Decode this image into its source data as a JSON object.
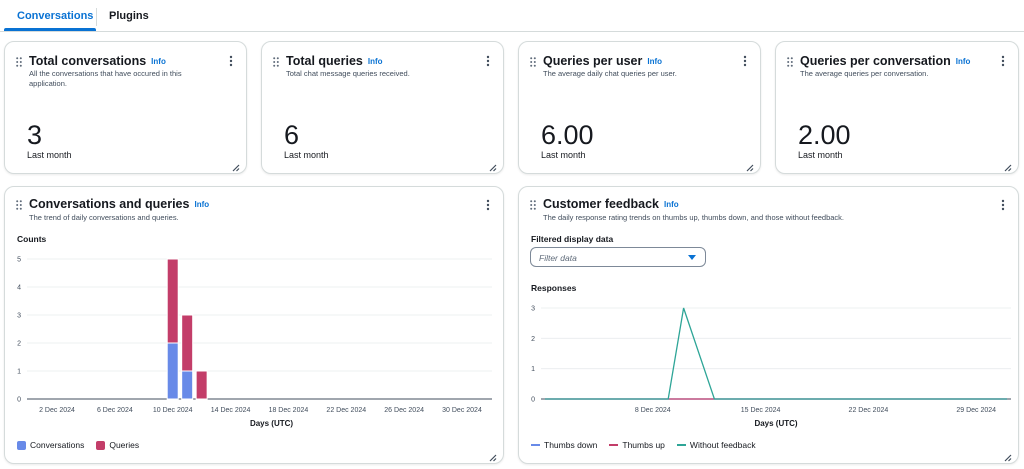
{
  "tabs": [
    {
      "label": "Conversations",
      "active": true
    },
    {
      "label": "Plugins",
      "active": false
    }
  ],
  "colors": {
    "accent": "#0972d3",
    "conversations": "#688ae8",
    "queries": "#c33d69",
    "thumbs_down": "#688ae8",
    "thumbs_up": "#c33d69",
    "without_feedback": "#2ea597"
  },
  "icons": {
    "drag_handle": "drag-handle-icon",
    "menu": "kebab-menu-icon",
    "resize": "resize-handle-icon",
    "dropdown": "caret-down-icon"
  },
  "info_label": "Info",
  "metrics": [
    {
      "title": "Total conversations",
      "description": "All the conversations that have occured in this application.",
      "value": "3",
      "period": "Last month"
    },
    {
      "title": "Total queries",
      "description": "Total chat message queries received.",
      "value": "6",
      "period": "Last month"
    },
    {
      "title": "Queries per user",
      "description": "The average daily chat queries per user.",
      "value": "6.00",
      "period": "Last month"
    },
    {
      "title": "Queries per conversation",
      "description": "The average queries per conversation.",
      "value": "2.00",
      "period": "Last month"
    }
  ],
  "conversations_chart": {
    "title": "Conversations and queries",
    "description": "The trend of daily conversations and queries.",
    "legend": [
      "Conversations",
      "Queries"
    ]
  },
  "feedback_chart": {
    "title": "Customer feedback",
    "description": "The daily response rating trends on thumbs up, thumbs down, and those without feedback.",
    "filter_label": "Filtered display data",
    "filter_placeholder": "Filter data",
    "legend": [
      "Thumbs down",
      "Thumbs up",
      "Without feedback"
    ]
  },
  "chart_data": [
    {
      "type": "bar",
      "stacked": true,
      "title": "",
      "ylabel": "Counts",
      "xlabel": "Days (UTC)",
      "ylim": [
        0,
        5
      ],
      "yticks": [
        0,
        1,
        2,
        3,
        4,
        5
      ],
      "xticks": [
        "2 Dec 2024",
        "6 Dec 2024",
        "10 Dec 2024",
        "14 Dec 2024",
        "18 Dec 2024",
        "22 Dec 2024",
        "26 Dec 2024",
        "30 Dec 2024"
      ],
      "x_start": "2024-12-02",
      "x_end": "2024-12-30",
      "categories": [
        "10 Dec 2024",
        "11 Dec 2024",
        "12 Dec 2024"
      ],
      "dates": [
        "2024-12-10",
        "2024-12-11",
        "2024-12-12"
      ],
      "series": [
        {
          "name": "Conversations",
          "values": [
            2,
            1,
            0
          ]
        },
        {
          "name": "Queries",
          "values": [
            3,
            2,
            1
          ]
        }
      ],
      "grid": true,
      "legend_position": "bottom-left"
    },
    {
      "type": "line",
      "title": "",
      "ylabel": "Responses",
      "xlabel": "Days (UTC)",
      "ylim": [
        0,
        3
      ],
      "yticks": [
        0,
        1,
        2,
        3
      ],
      "xticks": [
        "8 Dec 2024",
        "15 Dec 2024",
        "22 Dec 2024",
        "29 Dec 2024"
      ],
      "x_start": "2024-12-01",
      "x_end": "2024-12-31",
      "series": [
        {
          "name": "Thumbs down",
          "x": [
            "2024-12-01",
            "2024-12-31"
          ],
          "values": [
            0,
            0
          ]
        },
        {
          "name": "Thumbs up",
          "x": [
            "2024-12-01",
            "2024-12-31"
          ],
          "values": [
            0,
            0
          ]
        },
        {
          "name": "Without feedback",
          "x": [
            "2024-12-01",
            "2024-12-09",
            "2024-12-10",
            "2024-12-12",
            "2024-12-31"
          ],
          "values": [
            0,
            0,
            3,
            0,
            0
          ]
        }
      ],
      "grid": true,
      "legend_position": "bottom-left"
    }
  ]
}
